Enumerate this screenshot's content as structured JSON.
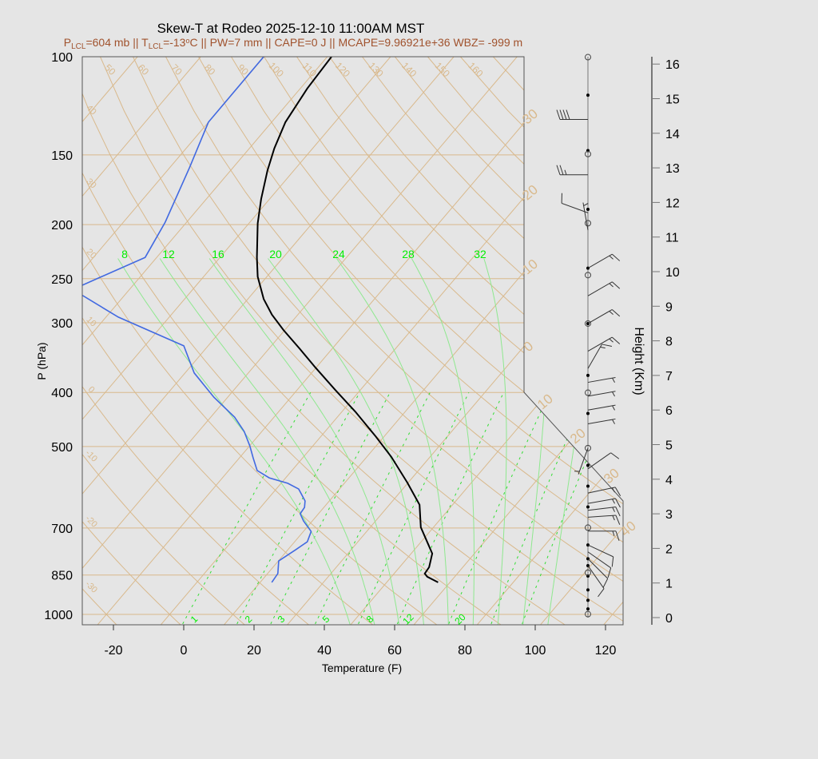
{
  "title": "Skew-T at Rodeo 2025-12-10 11:00AM MST",
  "subtitle_parts": [
    {
      "t": "P",
      "style": "normal"
    },
    {
      "t": "LCL",
      "style": "sub"
    },
    {
      "t": "=604 mb || T",
      "style": "normal"
    },
    {
      "t": "LCL",
      "style": "sub"
    },
    {
      "t": "=-13",
      "style": "normal"
    },
    {
      "t": "o",
      "style": "sup"
    },
    {
      "t": "C || PW=7 mm || CAPE=0 J || MCAPE=9.96921e+36 WBZ= -999 m",
      "style": "normal"
    }
  ],
  "colors": {
    "background": "#e5e5e5",
    "subtitle": "#a0522d",
    "temperature": "#000000",
    "dewpoint": "#4169e1",
    "isopleth_tan": "#d9b98c",
    "moist_adiabat": "#8fe88f",
    "mixing_ratio": "#33dd33",
    "mixing_label": "#00ee00",
    "frame": "#555555"
  },
  "chart_data": {
    "type": "line",
    "subtype": "skew-t log-p",
    "xlabel": "Temperature (F)",
    "ylabel": "P (hPa)",
    "x_ticks": [
      "-20",
      "0",
      "20",
      "40",
      "60",
      "80",
      "100",
      "120"
    ],
    "x_tick_values": [
      -20,
      0,
      20,
      40,
      60,
      80,
      100,
      120
    ],
    "xlim": [
      -29,
      125
    ],
    "y_scale": "log",
    "ylim": [
      1040,
      100
    ],
    "y_ticks": [
      "100",
      "150",
      "200",
      "250",
      "300",
      "400",
      "500",
      "700",
      "850",
      "1000"
    ],
    "y_tick_values": [
      100,
      150,
      200,
      250,
      300,
      400,
      500,
      700,
      850,
      1000
    ],
    "grid": true,
    "series": [
      {
        "name": "temperature",
        "pressure_hpa": [
          876,
          856,
          845,
          823,
          778,
          746,
          698,
          636,
          580,
          522,
          478,
          433,
          396,
          361,
          334,
          309,
          290,
          272,
          248,
          229,
          199,
          180,
          160,
          146,
          131,
          114,
          100
        ],
        "temp_f": [
          64.6,
          60.2,
          58.7,
          58.4,
          56.0,
          52.3,
          46.4,
          40.6,
          31.7,
          21.0,
          11.2,
          -0.2,
          -11.1,
          -22.2,
          -31.2,
          -40.4,
          -47.4,
          -53.5,
          -60.6,
          -65.5,
          -73.5,
          -78.4,
          -83.5,
          -86.9,
          -90.1,
          -92.0,
          -92.8
        ]
      },
      {
        "name": "dewpoint",
        "segments": [
          {
            "pressure_hpa": [
              876,
              845,
              802,
              766,
              741,
              710,
              680,
              660,
              643,
              626,
              596,
              582,
              569,
              552,
              524,
              499,
              470,
              443,
              408,
              369,
              330,
              293,
              268
            ],
            "temp_f": [
              17.3,
              16.9,
              14.1,
              16.2,
              17.6,
              16.2,
              11.5,
              8.8,
              8.5,
              7.1,
              2.4,
              -2.1,
              -8.7,
              -13.9,
              -18.1,
              -21.9,
              -27.0,
              -33.2,
              -43.9,
              -55.4,
              -64.9,
              -90.5,
              -105.9
            ]
          },
          {
            "pressure_hpa": [
              257,
              229,
              198,
              158,
              131,
              100
            ],
            "temp_f": [
              -108.5,
              -97.3,
              -100.1,
              -106.4,
              -112.0,
              -112.1
            ]
          }
        ]
      }
    ],
    "isotherm_labels_c": [
      "-30",
      "-20",
      "-10",
      "0",
      "10",
      "20",
      "30",
      "40"
    ],
    "left_edge_labels": [
      "40",
      "30",
      "20",
      "10",
      "0",
      "-10",
      "-20",
      "-30"
    ],
    "top_edge_labels": [
      "50",
      "60",
      "70",
      "80",
      "90",
      "100",
      "110",
      "120",
      "130",
      "140",
      "150",
      "160"
    ],
    "moist_adiabat_labels": [
      "8",
      "12",
      "16",
      "20",
      "24",
      "28",
      "32"
    ],
    "moist_adiabat_values_c": [
      8,
      12,
      16,
      20,
      24,
      28,
      32
    ],
    "mixing_ratio_labels": [
      "1",
      "2",
      "3",
      "5",
      "8",
      "12",
      "20"
    ],
    "mixing_ratio_values_gkg": [
      1,
      2,
      3,
      5,
      8,
      12,
      20
    ],
    "height_axis": {
      "label": "Height (Km)",
      "ticks": [
        "0",
        "1",
        "2",
        "3",
        "4",
        "5",
        "6",
        "7",
        "8",
        "9",
        "10",
        "11",
        "12",
        "13",
        "14",
        "15",
        "16"
      ]
    },
    "winds": [
      {
        "height_km": 14.4,
        "dir_deg": 270,
        "speed_kt": 40
      },
      {
        "height_km": 12.8,
        "dir_deg": 270,
        "speed_kt": 25
      },
      {
        "height_km": 11.7,
        "dir_deg": 290,
        "speed_kt": 10
      },
      {
        "height_km": 11.2,
        "dir_deg": 350,
        "speed_kt": 5
      },
      {
        "height_km": 10.1,
        "dir_deg": 60,
        "speed_kt": 15
      },
      {
        "height_km": 9.3,
        "dir_deg": 60,
        "speed_kt": 15
      },
      {
        "height_km": 8.5,
        "dir_deg": 60,
        "speed_kt": 15
      },
      {
        "height_km": 7.7,
        "dir_deg": 60,
        "speed_kt": 15
      },
      {
        "height_km": 7.2,
        "dir_deg": 30,
        "speed_kt": 15
      },
      {
        "height_km": 6.8,
        "dir_deg": 80,
        "speed_kt": 5
      },
      {
        "height_km": 6.4,
        "dir_deg": 80,
        "speed_kt": 5
      },
      {
        "height_km": 6.0,
        "dir_deg": 80,
        "speed_kt": 5
      },
      {
        "height_km": 5.6,
        "dir_deg": 80,
        "speed_kt": 5
      },
      {
        "height_km": 4.9,
        "dir_deg": 200,
        "speed_kt": 5
      },
      {
        "height_km": 4.3,
        "dir_deg": 55,
        "speed_kt": 10
      },
      {
        "height_km": 3.6,
        "dir_deg": 78,
        "speed_kt": 15
      },
      {
        "height_km": 3.3,
        "dir_deg": 80,
        "speed_kt": 15
      },
      {
        "height_km": 3.1,
        "dir_deg": 83,
        "speed_kt": 15
      },
      {
        "height_km": 2.9,
        "dir_deg": 86,
        "speed_kt": 15
      },
      {
        "height_km": 2.5,
        "dir_deg": 90,
        "speed_kt": 15
      },
      {
        "height_km": 2.1,
        "dir_deg": 115,
        "speed_kt": 10
      },
      {
        "height_km": 1.9,
        "dir_deg": 125,
        "speed_kt": 10
      },
      {
        "height_km": 1.7,
        "dir_deg": 135,
        "speed_kt": 10
      },
      {
        "height_km": 1.5,
        "dir_deg": 145,
        "speed_kt": 10
      }
    ],
    "wind_level_dots_km": [
      15.1,
      13.5,
      11.8,
      10.1,
      8.5,
      7.0,
      5.9,
      4.4,
      3.8,
      3.2,
      2.1,
      1.7,
      1.5,
      1.2,
      0.8,
      0.5,
      0.25
    ],
    "wind_level_circles_km": [
      16.2,
      13.4,
      11.4,
      9.9,
      8.5,
      6.5,
      4.9,
      2.6,
      1.3,
      0.1
    ]
  }
}
